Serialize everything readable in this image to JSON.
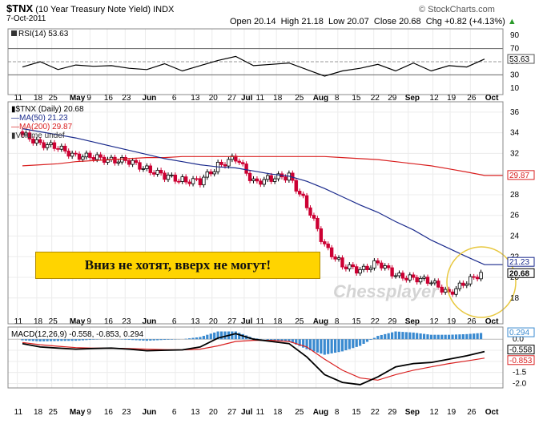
{
  "header": {
    "symbol": "$TNX",
    "name": "(10 Year Treasury Note Yield)",
    "exchange": "INDX",
    "date": "7-Oct-2011",
    "credit": "© StockCharts.com",
    "open_label": "Open",
    "open": "20.14",
    "high_label": "High",
    "high": "21.18",
    "low_label": "Low",
    "low": "20.07",
    "close_label": "Close",
    "close": "20.68",
    "chg_label": "Chg",
    "chg": "+0.82 (+4.13%)",
    "chg_arrow": "▲"
  },
  "annotation": {
    "banner_text": "Вниз не хотят, вверх не могут!",
    "watermark": "Chessplayer"
  },
  "colors": {
    "up": "#000000",
    "down": "#cc0033",
    "ma50": "#1a2a8c",
    "ma200": "#d92020",
    "macd": "#000000",
    "signal": "#d92020",
    "hist": "#3a8ad0",
    "banner": "#ffd400",
    "circle": "#e8c840"
  },
  "chart_data": [
    {
      "type": "line",
      "panel": "rsi",
      "legend": "RSI(14) 53.63",
      "ylim": [
        0,
        100
      ],
      "ticks": [
        90,
        70,
        50,
        30,
        10
      ],
      "reference_lines": [
        70,
        50,
        30
      ],
      "last_value": "53.63",
      "x": [
        "Apr 11",
        "Apr 18",
        "Apr 25",
        "May 2",
        "May 9",
        "May 16",
        "May 23",
        "May 31",
        "Jun 6",
        "Jun 13",
        "Jun 20",
        "Jun 27",
        "Jul 5",
        "Jul 11",
        "Jul 18",
        "Jul 25",
        "Aug 1",
        "Aug 8",
        "Aug 15",
        "Aug 22",
        "Aug 29",
        "Sep 6",
        "Sep 12",
        "Sep 19",
        "Sep 26",
        "Oct 3",
        "Oct 7"
      ],
      "values": [
        42,
        50,
        38,
        45,
        43,
        44,
        40,
        38,
        47,
        36,
        44,
        52,
        58,
        44,
        46,
        48,
        38,
        28,
        36,
        40,
        46,
        36,
        48,
        36,
        44,
        42,
        54
      ]
    },
    {
      "type": "candlestick",
      "panel": "price",
      "legend": [
        "$TNX (Daily) 20.68",
        "MA(50) 21.23",
        "MA(200) 29.87",
        "Volume undef"
      ],
      "ylim": [
        15.5,
        37
      ],
      "ticks": [
        36,
        34,
        32,
        30,
        28,
        26,
        24,
        22,
        20,
        18
      ],
      "last_labels": {
        "ma200": "29.87",
        "ma50": "21.23",
        "close": "20.68"
      },
      "x": [
        "Apr 11",
        "Apr 18",
        "Apr 25",
        "May 2",
        "May 9",
        "May 16",
        "May 23",
        "May 31",
        "Jun 6",
        "Jun 13",
        "Jun 20",
        "Jun 27",
        "Jul 5",
        "Jul 11",
        "Jul 18",
        "Jul 25",
        "Aug 1",
        "Aug 8",
        "Aug 15",
        "Aug 22",
        "Aug 29",
        "Sep 6",
        "Sep 12",
        "Sep 19",
        "Sep 26",
        "Oct 3",
        "Oct 7"
      ],
      "close": [
        33.8,
        33.0,
        32.5,
        31.8,
        31.6,
        31.4,
        31.2,
        30.5,
        29.8,
        29.4,
        29.3,
        30.8,
        31.6,
        29.2,
        29.6,
        29.8,
        27.0,
        23.0,
        21.2,
        20.6,
        21.5,
        20.1,
        20.0,
        19.5,
        18.5,
        19.5,
        20.68
      ],
      "ma50": [
        34.4,
        34.1,
        33.8,
        33.5,
        33.1,
        32.7,
        32.3,
        31.9,
        31.5,
        31.2,
        30.9,
        30.7,
        30.6,
        30.3,
        30.0,
        29.8,
        29.3,
        28.6,
        27.8,
        27.0,
        26.3,
        25.4,
        24.6,
        23.6,
        22.8,
        22.0,
        21.23
      ],
      "ma200": [
        30.8,
        30.9,
        31.0,
        31.2,
        31.3,
        31.4,
        31.5,
        31.6,
        31.6,
        31.7,
        31.7,
        31.7,
        31.7,
        31.7,
        31.7,
        31.7,
        31.7,
        31.7,
        31.6,
        31.5,
        31.4,
        31.2,
        31.0,
        30.8,
        30.5,
        30.2,
        29.87
      ]
    },
    {
      "type": "line",
      "panel": "macd",
      "legend": "MACD(12,26,9) -0.558, -0.853, 0.294",
      "ylim": [
        -2.2,
        0.55
      ],
      "ticks": [
        0.0,
        -0.5,
        -1.0,
        -1.5,
        -2.0
      ],
      "last_labels": {
        "hist": "0.294",
        "macd": "-0.558",
        "signal": "-0.853"
      },
      "x": [
        "Apr 11",
        "Apr 18",
        "Apr 25",
        "May 2",
        "May 9",
        "May 16",
        "May 23",
        "May 31",
        "Jun 6",
        "Jun 13",
        "Jun 20",
        "Jun 27",
        "Jul 5",
        "Jul 11",
        "Jul 18",
        "Jul 25",
        "Aug 1",
        "Aug 8",
        "Aug 15",
        "Aug 22",
        "Aug 29",
        "Sep 6",
        "Sep 12",
        "Sep 19",
        "Sep 26",
        "Oct 3",
        "Oct 7"
      ],
      "macd": [
        -0.2,
        -0.35,
        -0.4,
        -0.45,
        -0.42,
        -0.4,
        -0.45,
        -0.52,
        -0.5,
        -0.48,
        -0.35,
        0.05,
        0.25,
        0.0,
        -0.1,
        -0.2,
        -0.8,
        -1.6,
        -1.95,
        -2.05,
        -1.7,
        -1.25,
        -1.1,
        -1.05,
        -0.9,
        -0.75,
        -0.558
      ],
      "signal": [
        -0.15,
        -0.25,
        -0.32,
        -0.38,
        -0.4,
        -0.41,
        -0.42,
        -0.45,
        -0.47,
        -0.48,
        -0.45,
        -0.3,
        -0.1,
        -0.05,
        -0.05,
        -0.1,
        -0.35,
        -0.9,
        -1.4,
        -1.75,
        -1.85,
        -1.6,
        -1.4,
        -1.25,
        -1.1,
        -0.98,
        -0.853
      ],
      "hist": [
        -0.05,
        -0.1,
        -0.08,
        -0.07,
        -0.02,
        0.01,
        -0.03,
        -0.07,
        -0.03,
        0.0,
        0.1,
        0.35,
        0.35,
        0.05,
        -0.05,
        -0.1,
        -0.45,
        -0.7,
        -0.55,
        -0.3,
        0.15,
        0.35,
        0.3,
        0.2,
        0.2,
        0.23,
        0.294
      ]
    }
  ],
  "x_axis_labels": [
    "11",
    "18",
    "25",
    "May",
    "9",
    "16",
    "23",
    "Jun",
    "6",
    "13",
    "20",
    "27",
    "Jul",
    "11",
    "18",
    "25",
    "Aug",
    "8",
    "15",
    "22",
    "29",
    "Sep",
    "12",
    "19",
    "26",
    "Oct"
  ]
}
